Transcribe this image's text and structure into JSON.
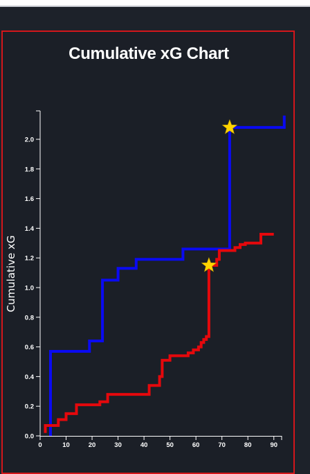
{
  "chart_data": {
    "type": "line",
    "title": "Cumulative xG Chart",
    "xlabel": "",
    "ylabel": "Cumulative xG",
    "xlim": [
      0,
      93
    ],
    "ylim": [
      0,
      2.18
    ],
    "x_ticks": [
      0,
      10,
      20,
      30,
      40,
      50,
      60,
      70,
      80,
      90
    ],
    "y_ticks": [
      0.0,
      0.2,
      0.4,
      0.6,
      0.8,
      1.0,
      1.2,
      1.4,
      1.6,
      1.8,
      2.0
    ],
    "x_tick_labels": [
      "0",
      "10",
      "20",
      "30",
      "40",
      "50",
      "60",
      "70",
      "80",
      "90"
    ],
    "y_tick_labels": [
      "0.0",
      "0.2",
      "0.4",
      "0.6",
      "0.8",
      "1.0",
      "1.2",
      "1.4",
      "1.6",
      "1.8",
      "2.0"
    ],
    "step": true,
    "series": [
      {
        "color": "#0a0af2",
        "points": [
          [
            4,
            0.0
          ],
          [
            4,
            0.57
          ],
          [
            19,
            0.57
          ],
          [
            19,
            0.64
          ],
          [
            24,
            0.64
          ],
          [
            24,
            1.05
          ],
          [
            30,
            1.05
          ],
          [
            30,
            1.13
          ],
          [
            37,
            1.13
          ],
          [
            37,
            1.19
          ],
          [
            55,
            1.19
          ],
          [
            55,
            1.26
          ],
          [
            73,
            1.26
          ],
          [
            73,
            2.08
          ],
          [
            94,
            2.08
          ],
          [
            94,
            2.16
          ]
        ],
        "goals": [
          [
            73,
            2.08
          ]
        ]
      },
      {
        "color": "#e5080c",
        "points": [
          [
            2,
            0.02
          ],
          [
            2,
            0.07
          ],
          [
            7,
            0.07
          ],
          [
            7,
            0.11
          ],
          [
            10,
            0.11
          ],
          [
            10,
            0.15
          ],
          [
            14,
            0.15
          ],
          [
            14,
            0.21
          ],
          [
            23,
            0.21
          ],
          [
            23,
            0.23
          ],
          [
            26,
            0.23
          ],
          [
            26,
            0.28
          ],
          [
            42,
            0.28
          ],
          [
            42,
            0.34
          ],
          [
            46,
            0.34
          ],
          [
            46,
            0.4
          ],
          [
            47,
            0.4
          ],
          [
            47,
            0.51
          ],
          [
            50,
            0.51
          ],
          [
            50,
            0.54
          ],
          [
            57,
            0.54
          ],
          [
            57,
            0.56
          ],
          [
            59,
            0.56
          ],
          [
            59,
            0.58
          ],
          [
            61,
            0.58
          ],
          [
            61,
            0.6
          ],
          [
            62,
            0.6
          ],
          [
            62,
            0.63
          ],
          [
            63,
            0.63
          ],
          [
            63,
            0.65
          ],
          [
            64,
            0.65
          ],
          [
            64,
            0.67
          ],
          [
            65,
            0.67
          ],
          [
            65,
            1.15
          ],
          [
            68,
            1.15
          ],
          [
            68,
            1.19
          ],
          [
            69,
            1.19
          ],
          [
            69,
            1.25
          ],
          [
            75,
            1.25
          ],
          [
            75,
            1.27
          ],
          [
            77,
            1.27
          ],
          [
            77,
            1.29
          ],
          [
            79,
            1.29
          ],
          [
            79,
            1.3
          ],
          [
            85,
            1.3
          ],
          [
            85,
            1.36
          ],
          [
            90,
            1.36
          ],
          [
            90,
            1.36
          ]
        ],
        "goals": [
          [
            65,
            1.15
          ]
        ]
      }
    ],
    "goal_marker_color": "#ffd400"
  }
}
